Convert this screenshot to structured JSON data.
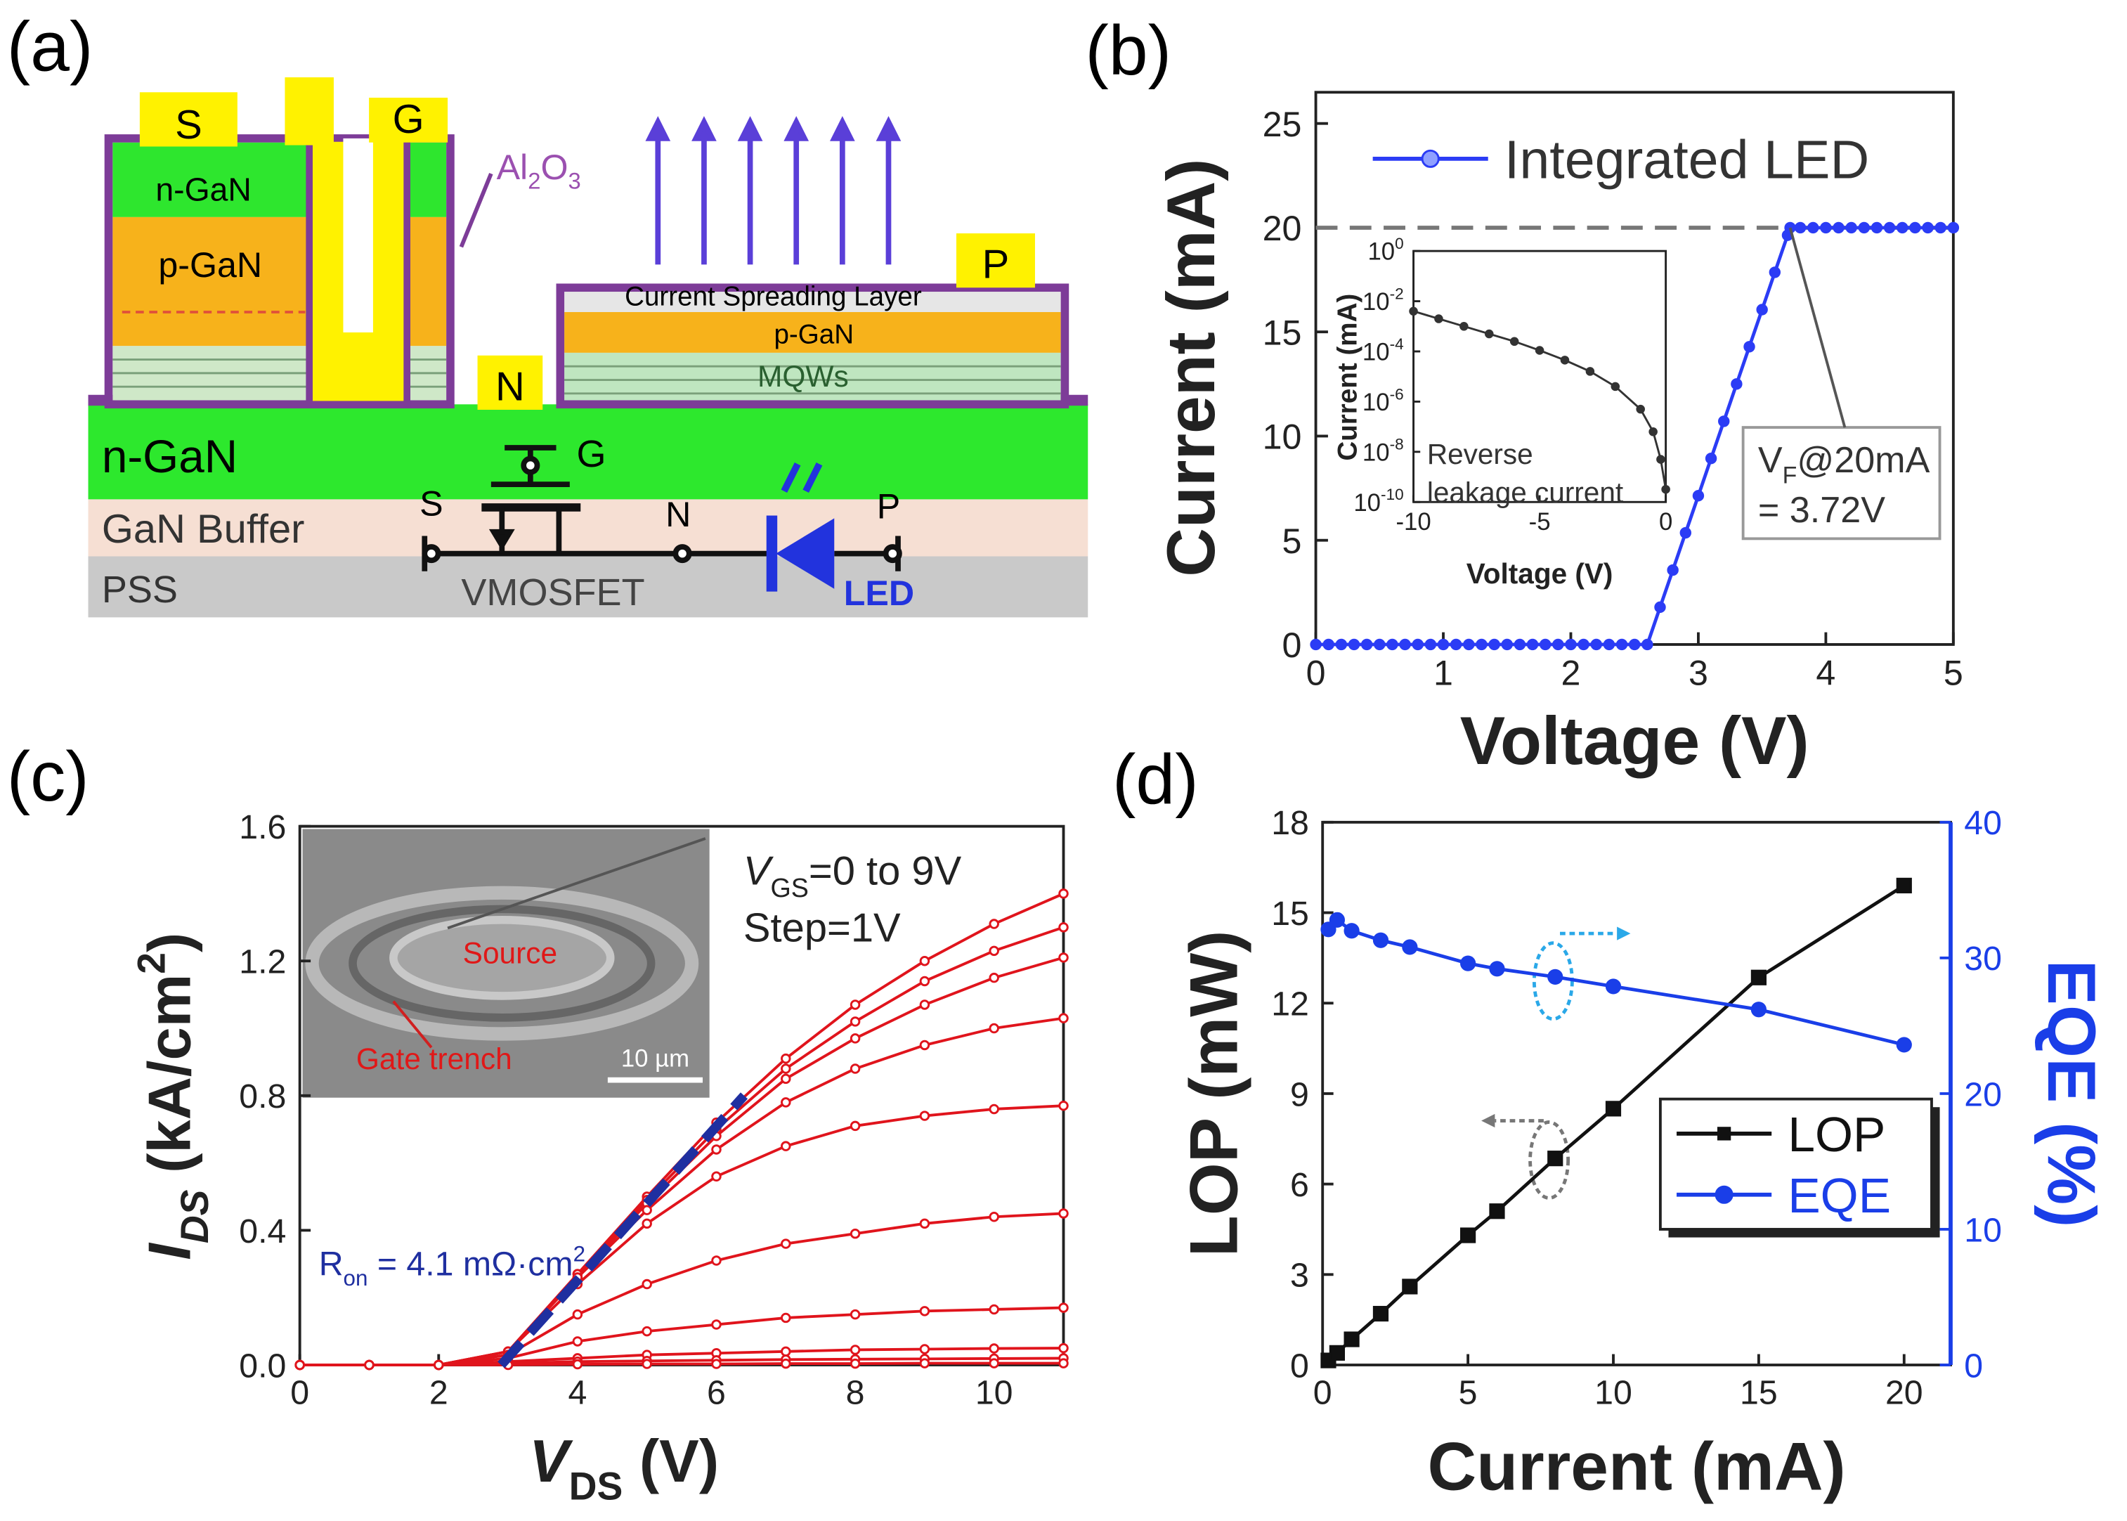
{
  "diagram": {
    "label": "(a)",
    "source": "S",
    "gate": "G",
    "drain_n": "N",
    "anode": "P",
    "mos_ngan": "n-GaN",
    "mos_pgan": "p-GaN",
    "oxide_al": "Al",
    "oxide_sub1": "2",
    "oxide_o": "O",
    "oxide_sub2": "3",
    "spreading": "Current Spreading Layer",
    "led_pgan": "p-GaN",
    "mqw": "MQWs",
    "ngan": "n-GaN",
    "buffer": "GaN Buffer",
    "substrate": "PSS",
    "circuit_g": "G",
    "circuit_s": "S",
    "circuit_n": "N",
    "circuit_p": "P",
    "mosfet": "VMOSFET",
    "led": "LED"
  },
  "chart_data": [
    {
      "type": "line",
      "label": "(b)",
      "xlabel": "Voltage (V)",
      "ylabel": "Current (mA)",
      "x": [
        0,
        0.1,
        0.2,
        0.3,
        0.4,
        0.5,
        0.6,
        0.7,
        0.8,
        0.9,
        1,
        1.1,
        1.2,
        1.3,
        1.4,
        1.5,
        1.6,
        1.7,
        1.8,
        1.9,
        2,
        2.1,
        2.2,
        2.3,
        2.4,
        2.5,
        2.6,
        2.7,
        2.8,
        2.9,
        3,
        3.1,
        3.2,
        3.3,
        3.4,
        3.5,
        3.6,
        3.7,
        3.72,
        3.8,
        3.9,
        4,
        4.1,
        4.2,
        4.3,
        4.4,
        4.5,
        4.6,
        4.7,
        4.8,
        4.9,
        5
      ],
      "series": [
        {
          "name": "Integrated LED",
          "color": "#2b3cf5",
          "values": [
            0,
            0,
            0,
            0,
            0,
            0,
            0,
            0,
            0,
            0,
            0,
            0,
            0,
            0,
            0,
            0,
            0,
            0,
            0,
            0,
            0,
            0,
            0,
            0,
            0,
            0,
            0,
            1.79,
            3.57,
            5.36,
            7.14,
            8.93,
            10.71,
            12.5,
            14.29,
            16.07,
            17.86,
            19.64,
            20,
            20,
            20,
            20,
            20,
            20,
            20,
            20,
            20,
            20,
            20,
            20,
            20,
            20
          ]
        }
      ],
      "xlim": [
        0,
        5
      ],
      "ylim": [
        0,
        26.5
      ],
      "xticks": [
        0,
        1,
        2,
        3,
        4,
        5
      ],
      "yticks": [
        0,
        5,
        10,
        15,
        20,
        25
      ],
      "legend": "upper left",
      "hline": 20,
      "annotation": {
        "v": "V",
        "sub": "F",
        "text": "@20mA",
        "line2": "= 3.72V",
        "arrow_to": [
          3.72,
          20
        ]
      },
      "inset": {
        "type": "line",
        "log_y": true,
        "xlabel": "Voltage (V)",
        "ylabel": "Current (mA)",
        "x": [
          -10,
          -9,
          -8,
          -7,
          -6,
          -5,
          -4,
          -3,
          -2,
          -1,
          -0.5,
          -0.2,
          0
        ],
        "series": [
          {
            "color": "#333333",
            "values": [
              0.004,
              0.002,
              0.001,
              0.0005,
              0.00025,
              0.00011,
              4.5e-05,
              1.6e-05,
              4e-06,
              5e-07,
              6.3e-08,
              5e-09,
              3.2e-10
            ]
          }
        ],
        "xlim": [
          -10,
          0
        ],
        "ylim": [
          1e-10,
          1
        ],
        "xticks": [
          -10,
          -5,
          0
        ],
        "yticks": [
          {
            "value": 1,
            "label": "10",
            "exp": "0"
          },
          {
            "value": 0.01,
            "label": "10",
            "exp": "-2"
          },
          {
            "value": 0.0001,
            "label": "10",
            "exp": "-4"
          },
          {
            "value": 1e-06,
            "label": "10",
            "exp": "-6"
          },
          {
            "value": 1e-08,
            "label": "10",
            "exp": "-8"
          },
          {
            "value": 1e-10,
            "label": "10",
            "exp": "-10"
          }
        ],
        "text": [
          "Reverse",
          "leakage current"
        ]
      }
    },
    {
      "type": "line",
      "label": "(c)",
      "xlabel": {
        "main": "V",
        "sub": "DS",
        "rest": " (V)"
      },
      "ylabel": {
        "main": "I",
        "sub": "DS",
        "rest": " (kA/cm",
        "sup": "2",
        "end": ")"
      },
      "x": [
        0,
        1,
        2,
        3,
        4,
        5,
        6,
        7,
        8,
        9,
        10,
        11
      ],
      "series": [
        {
          "color": "#e0141c",
          "values": [
            0,
            0,
            0,
            0.04,
            0.27,
            0.5,
            0.72,
            0.91,
            1.07,
            1.2,
            1.31,
            1.4
          ]
        },
        {
          "color": "#e0141c",
          "values": [
            0,
            0,
            0,
            0.04,
            0.27,
            0.49,
            0.7,
            0.88,
            1.02,
            1.14,
            1.23,
            1.3
          ]
        },
        {
          "color": "#e0141c",
          "values": [
            0,
            0,
            0,
            0.04,
            0.26,
            0.48,
            0.68,
            0.85,
            0.97,
            1.07,
            1.15,
            1.21
          ]
        },
        {
          "color": "#e0141c",
          "values": [
            0,
            0,
            0,
            0.04,
            0.26,
            0.46,
            0.64,
            0.78,
            0.88,
            0.95,
            1.0,
            1.03
          ]
        },
        {
          "color": "#e0141c",
          "values": [
            0,
            0,
            0,
            0.04,
            0.24,
            0.42,
            0.56,
            0.65,
            0.71,
            0.74,
            0.76,
            0.77
          ]
        },
        {
          "color": "#e0141c",
          "values": [
            0,
            0,
            0,
            0.03,
            0.15,
            0.24,
            0.31,
            0.36,
            0.39,
            0.42,
            0.44,
            0.45
          ]
        },
        {
          "color": "#e0141c",
          "values": [
            0,
            0,
            0,
            0.02,
            0.07,
            0.1,
            0.12,
            0.14,
            0.15,
            0.16,
            0.165,
            0.17
          ]
        },
        {
          "color": "#e0141c",
          "values": [
            0,
            0,
            0,
            0.01,
            0.02,
            0.03,
            0.035,
            0.04,
            0.045,
            0.047,
            0.049,
            0.05
          ]
        },
        {
          "color": "#e0141c",
          "values": [
            0,
            0,
            0,
            0.005,
            0.01,
            0.012,
            0.014,
            0.016,
            0.017,
            0.018,
            0.019,
            0.02
          ]
        },
        {
          "color": "#e0141c",
          "values": [
            0,
            0,
            0,
            0,
            0.002,
            0.003,
            0.003,
            0.004,
            0.004,
            0.005,
            0.005,
            0.005
          ]
        }
      ],
      "xlim": [
        0,
        11
      ],
      "ylim": [
        0,
        1.6
      ],
      "xticks": [
        0,
        2,
        4,
        6,
        8,
        10
      ],
      "yticks": [
        {
          "value": 0,
          "label": "0.0"
        },
        0.4,
        0.8,
        1.2,
        1.6
      ],
      "fit_line": {
        "x": [
          2.9,
          6.4
        ],
        "y": [
          0,
          0.8
        ],
        "color": "#1f2fa0"
      },
      "r_on": {
        "main": "R",
        "sub": "on",
        "rest": " = 4.1 mΩ·cm",
        "sup": "2"
      },
      "vgs": {
        "main": "V",
        "sub": "GS",
        "rest": "=0 to 9V"
      },
      "step": "Step=1V",
      "inset_text": {
        "source": "Source",
        "gate": "Gate trench",
        "scale": "10 µm"
      }
    },
    {
      "type": "line",
      "label": "(d)",
      "xlabel": "Current (mA)",
      "ylabel": "LOP (mW)",
      "y2label": "EQE (%)",
      "x": [
        0.2,
        0.5,
        1,
        2,
        3,
        5,
        6,
        8,
        10,
        15,
        20
      ],
      "series": [
        {
          "name": "LOP",
          "color": "#111111",
          "marker": "square",
          "values": [
            0.15,
            0.4,
            0.85,
            1.7,
            2.6,
            4.3,
            5.1,
            6.85,
            8.5,
            12.85,
            15.9
          ]
        },
        {
          "name": "EQE",
          "color": "#1a3ee8",
          "marker": "circle",
          "axis": "y2",
          "values": [
            32.1,
            32.8,
            32.0,
            31.3,
            30.8,
            29.6,
            29.2,
            28.6,
            27.9,
            26.2,
            23.6
          ]
        }
      ],
      "xlim": [
        0,
        21.6
      ],
      "ylim": [
        0,
        18
      ],
      "y2lim": [
        0,
        40
      ],
      "xticks": [
        0,
        5,
        10,
        15,
        20
      ],
      "yticks": [
        0,
        3,
        6,
        9,
        12,
        15,
        18
      ],
      "y2ticks": [
        0,
        10,
        20,
        30,
        40
      ],
      "legend": "lower right"
    }
  ]
}
